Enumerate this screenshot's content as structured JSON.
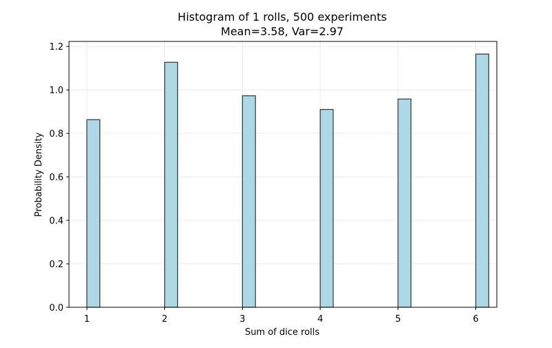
{
  "chart_data": {
    "type": "bar",
    "title": "Histogram of 1 rolls, 500 experiments",
    "subtitle": "Mean=3.58, Var=2.97",
    "xlabel": "Sum of dice rolls",
    "ylabel": "Probability Density",
    "x": [
      1,
      2,
      3,
      4,
      5,
      6
    ],
    "values": [
      0.863,
      1.127,
      0.973,
      0.91,
      0.958,
      1.165
    ],
    "xticks": [
      "1",
      "2",
      "3",
      "4",
      "5",
      "6"
    ],
    "yticks": [
      "0.0",
      "0.2",
      "0.4",
      "0.6",
      "0.8",
      "1.0",
      "1.2"
    ],
    "ytick_values": [
      0,
      0.2,
      0.4,
      0.6,
      0.8,
      1.0,
      1.2
    ],
    "xlim": [
      0.77,
      6.27
    ],
    "ylim": [
      0,
      1.223
    ],
    "bar_width": 0.1667,
    "grid": true,
    "colors": {
      "bar_fill": "#add8e6",
      "bar_edge": "#333333",
      "grid": "#e6e6e6"
    }
  }
}
